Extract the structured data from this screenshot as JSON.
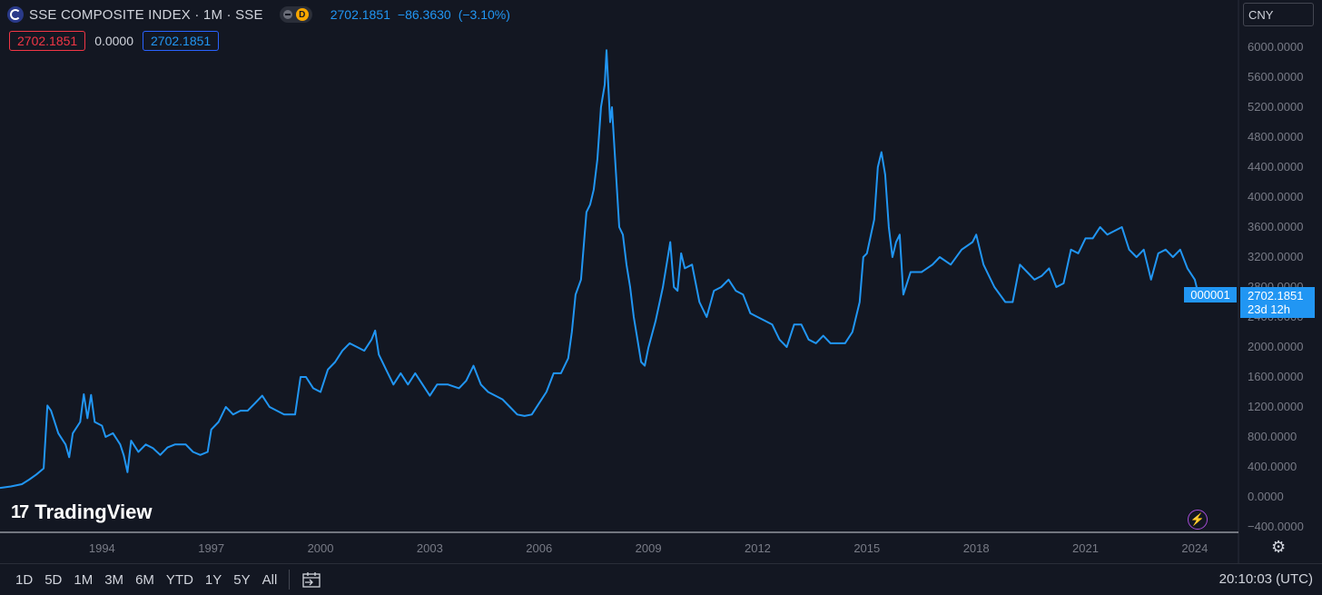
{
  "header": {
    "title": "SSE COMPOSITE INDEX · 1M · SSE",
    "badge_d": "D",
    "last": "2702.1851",
    "change": "−86.3630",
    "change_pct": "(−3.10%)",
    "ohlc_red": "2702.1851",
    "ohlc_plain": "0.0000",
    "ohlc_blue": "2702.1851"
  },
  "currency": "CNY",
  "logo": {
    "mark": "17",
    "text": "TradingView"
  },
  "price_label": {
    "symbol": "000001",
    "value": "2702.1851",
    "countdown": "23d 12h"
  },
  "ranges": [
    "1D",
    "5D",
    "1M",
    "3M",
    "6M",
    "YTD",
    "1Y",
    "5Y",
    "All"
  ],
  "clock": "20:10:03 (UTC)",
  "colors": {
    "line": "#2196f3",
    "bg": "#131722",
    "axis": "#787b86"
  },
  "chart_data": {
    "type": "line",
    "x_tick_labels": [
      "1994",
      "1997",
      "2000",
      "2003",
      "2006",
      "2009",
      "2012",
      "2015",
      "2018",
      "2021",
      "2024"
    ],
    "y_tick_labels": [
      "−400.0000",
      "0.0000",
      "400.0000",
      "800.0000",
      "1200.0000",
      "1600.0000",
      "2000.0000",
      "2400.0000",
      "2800.0000",
      "3200.0000",
      "3600.0000",
      "4000.0000",
      "4400.0000",
      "4800.0000",
      "5200.0000",
      "5600.0000",
      "6000.0000"
    ],
    "ylim": [
      -400,
      6000
    ],
    "xlim": [
      1991.2,
      2025.2
    ],
    "grid": false,
    "series": [
      {
        "values": [
          [
            1991.2,
            120
          ],
          [
            1991.5,
            140
          ],
          [
            1991.8,
            170
          ],
          [
            1992.0,
            230
          ],
          [
            1992.2,
            300
          ],
          [
            1992.4,
            380
          ],
          [
            1992.5,
            1220
          ],
          [
            1992.6,
            1150
          ],
          [
            1992.8,
            850
          ],
          [
            1993.0,
            700
          ],
          [
            1993.1,
            530
          ],
          [
            1993.2,
            850
          ],
          [
            1993.4,
            1000
          ],
          [
            1993.5,
            1370
          ],
          [
            1993.6,
            1050
          ],
          [
            1993.7,
            1360
          ],
          [
            1993.8,
            1000
          ],
          [
            1994.0,
            950
          ],
          [
            1994.1,
            800
          ],
          [
            1994.3,
            850
          ],
          [
            1994.5,
            700
          ],
          [
            1994.6,
            550
          ],
          [
            1994.7,
            330
          ],
          [
            1994.8,
            750
          ],
          [
            1995.0,
            600
          ],
          [
            1995.2,
            700
          ],
          [
            1995.4,
            650
          ],
          [
            1995.6,
            560
          ],
          [
            1995.8,
            660
          ],
          [
            1996.0,
            700
          ],
          [
            1996.3,
            700
          ],
          [
            1996.5,
            600
          ],
          [
            1996.7,
            560
          ],
          [
            1996.9,
            600
          ],
          [
            1997.0,
            900
          ],
          [
            1997.2,
            1000
          ],
          [
            1997.4,
            1200
          ],
          [
            1997.6,
            1100
          ],
          [
            1997.8,
            1150
          ],
          [
            1998.0,
            1150
          ],
          [
            1998.2,
            1250
          ],
          [
            1998.4,
            1350
          ],
          [
            1998.6,
            1200
          ],
          [
            1998.8,
            1150
          ],
          [
            1999.0,
            1100
          ],
          [
            1999.3,
            1100
          ],
          [
            1999.45,
            1600
          ],
          [
            1999.6,
            1600
          ],
          [
            1999.8,
            1450
          ],
          [
            2000.0,
            1400
          ],
          [
            2000.2,
            1700
          ],
          [
            2000.4,
            1800
          ],
          [
            2000.6,
            1950
          ],
          [
            2000.8,
            2050
          ],
          [
            2001.0,
            2000
          ],
          [
            2001.2,
            1950
          ],
          [
            2001.4,
            2100
          ],
          [
            2001.5,
            2220
          ],
          [
            2001.6,
            1900
          ],
          [
            2001.8,
            1700
          ],
          [
            2002.0,
            1500
          ],
          [
            2002.2,
            1650
          ],
          [
            2002.4,
            1500
          ],
          [
            2002.6,
            1650
          ],
          [
            2002.8,
            1500
          ],
          [
            2003.0,
            1350
          ],
          [
            2003.2,
            1500
          ],
          [
            2003.5,
            1500
          ],
          [
            2003.8,
            1450
          ],
          [
            2004.0,
            1550
          ],
          [
            2004.2,
            1750
          ],
          [
            2004.4,
            1500
          ],
          [
            2004.6,
            1400
          ],
          [
            2004.8,
            1350
          ],
          [
            2005.0,
            1300
          ],
          [
            2005.2,
            1200
          ],
          [
            2005.4,
            1100
          ],
          [
            2005.6,
            1080
          ],
          [
            2005.8,
            1100
          ],
          [
            2006.0,
            1250
          ],
          [
            2006.2,
            1400
          ],
          [
            2006.4,
            1650
          ],
          [
            2006.6,
            1650
          ],
          [
            2006.8,
            1850
          ],
          [
            2006.9,
            2200
          ],
          [
            2007.0,
            2700
          ],
          [
            2007.15,
            2900
          ],
          [
            2007.3,
            3800
          ],
          [
            2007.4,
            3900
          ],
          [
            2007.5,
            4100
          ],
          [
            2007.6,
            4500
          ],
          [
            2007.7,
            5200
          ],
          [
            2007.8,
            5500
          ],
          [
            2007.85,
            5960
          ],
          [
            2007.95,
            5000
          ],
          [
            2008.0,
            5200
          ],
          [
            2008.1,
            4400
          ],
          [
            2008.2,
            3600
          ],
          [
            2008.3,
            3500
          ],
          [
            2008.4,
            3100
          ],
          [
            2008.5,
            2800
          ],
          [
            2008.6,
            2400
          ],
          [
            2008.7,
            2100
          ],
          [
            2008.8,
            1800
          ],
          [
            2008.9,
            1750
          ],
          [
            2009.0,
            1990
          ],
          [
            2009.2,
            2350
          ],
          [
            2009.4,
            2800
          ],
          [
            2009.6,
            3400
          ],
          [
            2009.7,
            2800
          ],
          [
            2009.8,
            2750
          ],
          [
            2009.9,
            3250
          ],
          [
            2010.0,
            3050
          ],
          [
            2010.2,
            3100
          ],
          [
            2010.4,
            2600
          ],
          [
            2010.6,
            2400
          ],
          [
            2010.8,
            2750
          ],
          [
            2011.0,
            2800
          ],
          [
            2011.2,
            2900
          ],
          [
            2011.4,
            2750
          ],
          [
            2011.6,
            2700
          ],
          [
            2011.8,
            2450
          ],
          [
            2012.0,
            2400
          ],
          [
            2012.2,
            2350
          ],
          [
            2012.4,
            2300
          ],
          [
            2012.6,
            2100
          ],
          [
            2012.8,
            2000
          ],
          [
            2013.0,
            2300
          ],
          [
            2013.2,
            2300
          ],
          [
            2013.4,
            2100
          ],
          [
            2013.6,
            2050
          ],
          [
            2013.8,
            2150
          ],
          [
            2014.0,
            2050
          ],
          [
            2014.2,
            2050
          ],
          [
            2014.4,
            2050
          ],
          [
            2014.6,
            2200
          ],
          [
            2014.8,
            2600
          ],
          [
            2014.9,
            3200
          ],
          [
            2015.0,
            3250
          ],
          [
            2015.2,
            3700
          ],
          [
            2015.3,
            4400
          ],
          [
            2015.4,
            4600
          ],
          [
            2015.5,
            4300
          ],
          [
            2015.6,
            3600
          ],
          [
            2015.7,
            3200
          ],
          [
            2015.8,
            3400
          ],
          [
            2015.9,
            3500
          ],
          [
            2016.0,
            2700
          ],
          [
            2016.2,
            3000
          ],
          [
            2016.5,
            3000
          ],
          [
            2016.8,
            3100
          ],
          [
            2017.0,
            3200
          ],
          [
            2017.3,
            3100
          ],
          [
            2017.6,
            3300
          ],
          [
            2017.9,
            3400
          ],
          [
            2018.0,
            3500
          ],
          [
            2018.2,
            3100
          ],
          [
            2018.5,
            2800
          ],
          [
            2018.8,
            2600
          ],
          [
            2019.0,
            2600
          ],
          [
            2019.2,
            3100
          ],
          [
            2019.4,
            3000
          ],
          [
            2019.6,
            2900
          ],
          [
            2019.8,
            2950
          ],
          [
            2020.0,
            3050
          ],
          [
            2020.2,
            2800
          ],
          [
            2020.4,
            2850
          ],
          [
            2020.6,
            3300
          ],
          [
            2020.8,
            3250
          ],
          [
            2021.0,
            3450
          ],
          [
            2021.2,
            3450
          ],
          [
            2021.4,
            3600
          ],
          [
            2021.6,
            3500
          ],
          [
            2021.8,
            3550
          ],
          [
            2022.0,
            3600
          ],
          [
            2022.2,
            3300
          ],
          [
            2022.4,
            3200
          ],
          [
            2022.6,
            3300
          ],
          [
            2022.8,
            2900
          ],
          [
            2023.0,
            3250
          ],
          [
            2023.2,
            3300
          ],
          [
            2023.4,
            3200
          ],
          [
            2023.6,
            3300
          ],
          [
            2023.8,
            3050
          ],
          [
            2024.0,
            2900
          ],
          [
            2024.1,
            2702
          ]
        ]
      }
    ]
  }
}
